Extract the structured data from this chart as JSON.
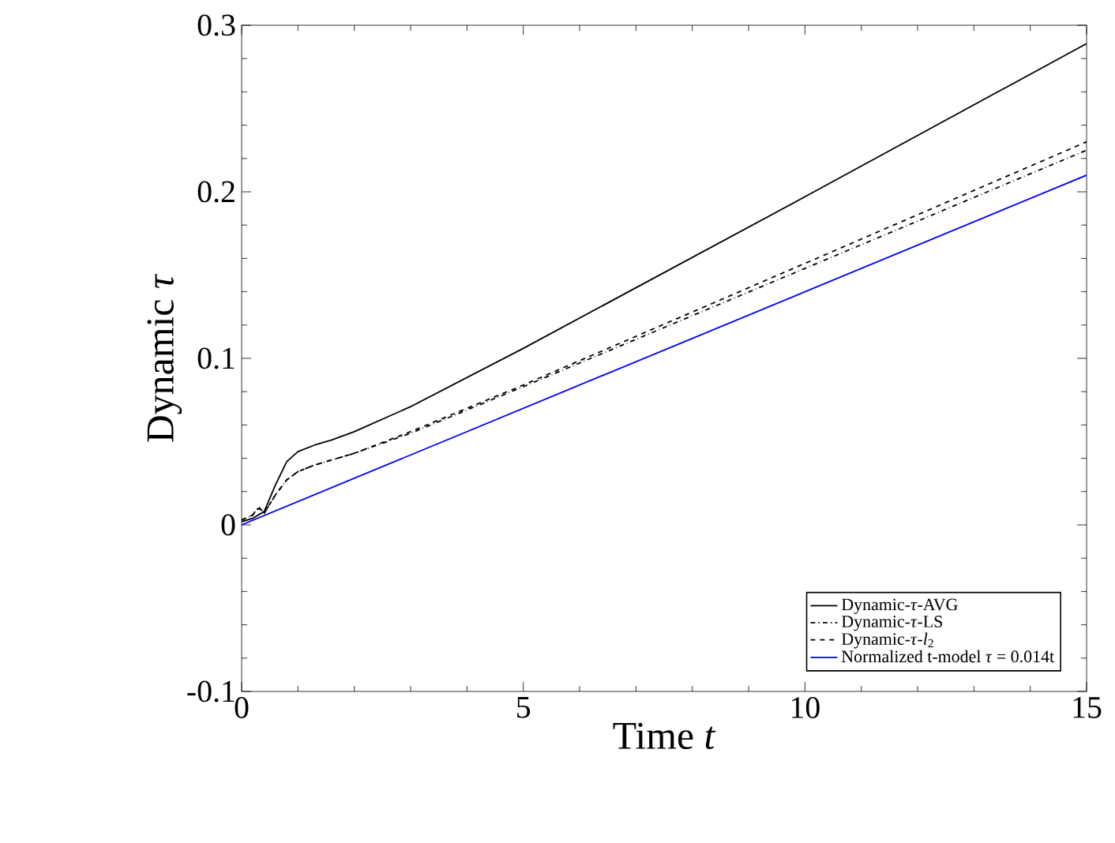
{
  "chart_data": {
    "type": "line",
    "xlabel": "Time *t*",
    "ylabel": "Dynamic *τ*",
    "xlim": [
      0,
      15
    ],
    "ylim": [
      -0.1,
      0.3
    ],
    "xticks": [
      0,
      5,
      10,
      15
    ],
    "yticks": [
      -0.1,
      0,
      0.1,
      0.2,
      0.3
    ],
    "legend": "bottom right",
    "marker": "none",
    "grid": false,
    "series": [
      {
        "name": "Dynamic-*τ*-AVG",
        "color": "#000000",
        "line_style": "solid",
        "x": [
          0,
          0.2,
          0.4,
          0.6,
          0.8,
          1.0,
          1.3,
          1.6,
          2,
          3,
          5,
          10,
          15
        ],
        "values": [
          0.002,
          0.004,
          0.008,
          0.024,
          0.038,
          0.044,
          0.048,
          0.051,
          0.056,
          0.071,
          0.106,
          0.197,
          0.289
        ]
      },
      {
        "name": "Dynamic-*τ*-LS",
        "color": "#000000",
        "line_style": "dashdot",
        "x": [
          0,
          0.2,
          0.3,
          0.4,
          0.6,
          0.8,
          1.0,
          1.3,
          1.6,
          2,
          3,
          5,
          10,
          15
        ],
        "values": [
          0.003,
          0.006,
          0.011,
          0.007,
          0.018,
          0.027,
          0.032,
          0.036,
          0.039,
          0.043,
          0.055,
          0.083,
          0.154,
          0.225
        ]
      },
      {
        "name": "Dynamic-*τ*-*l*$_{2}$",
        "color": "#000000",
        "line_style": "dashed",
        "x": [
          0,
          0.2,
          0.3,
          0.4,
          0.6,
          0.8,
          1.0,
          1.3,
          1.6,
          2,
          3,
          5,
          10,
          15
        ],
        "values": [
          0.003,
          0.006,
          0.01,
          0.007,
          0.018,
          0.027,
          0.032,
          0.036,
          0.039,
          0.043,
          0.056,
          0.084,
          0.157,
          0.23
        ]
      },
      {
        "name": "Normalized t-model *τ* = 0.014t",
        "color": "#0000ff",
        "line_style": "solid",
        "x": [
          0,
          15
        ],
        "values": [
          0,
          0.21
        ]
      }
    ]
  }
}
